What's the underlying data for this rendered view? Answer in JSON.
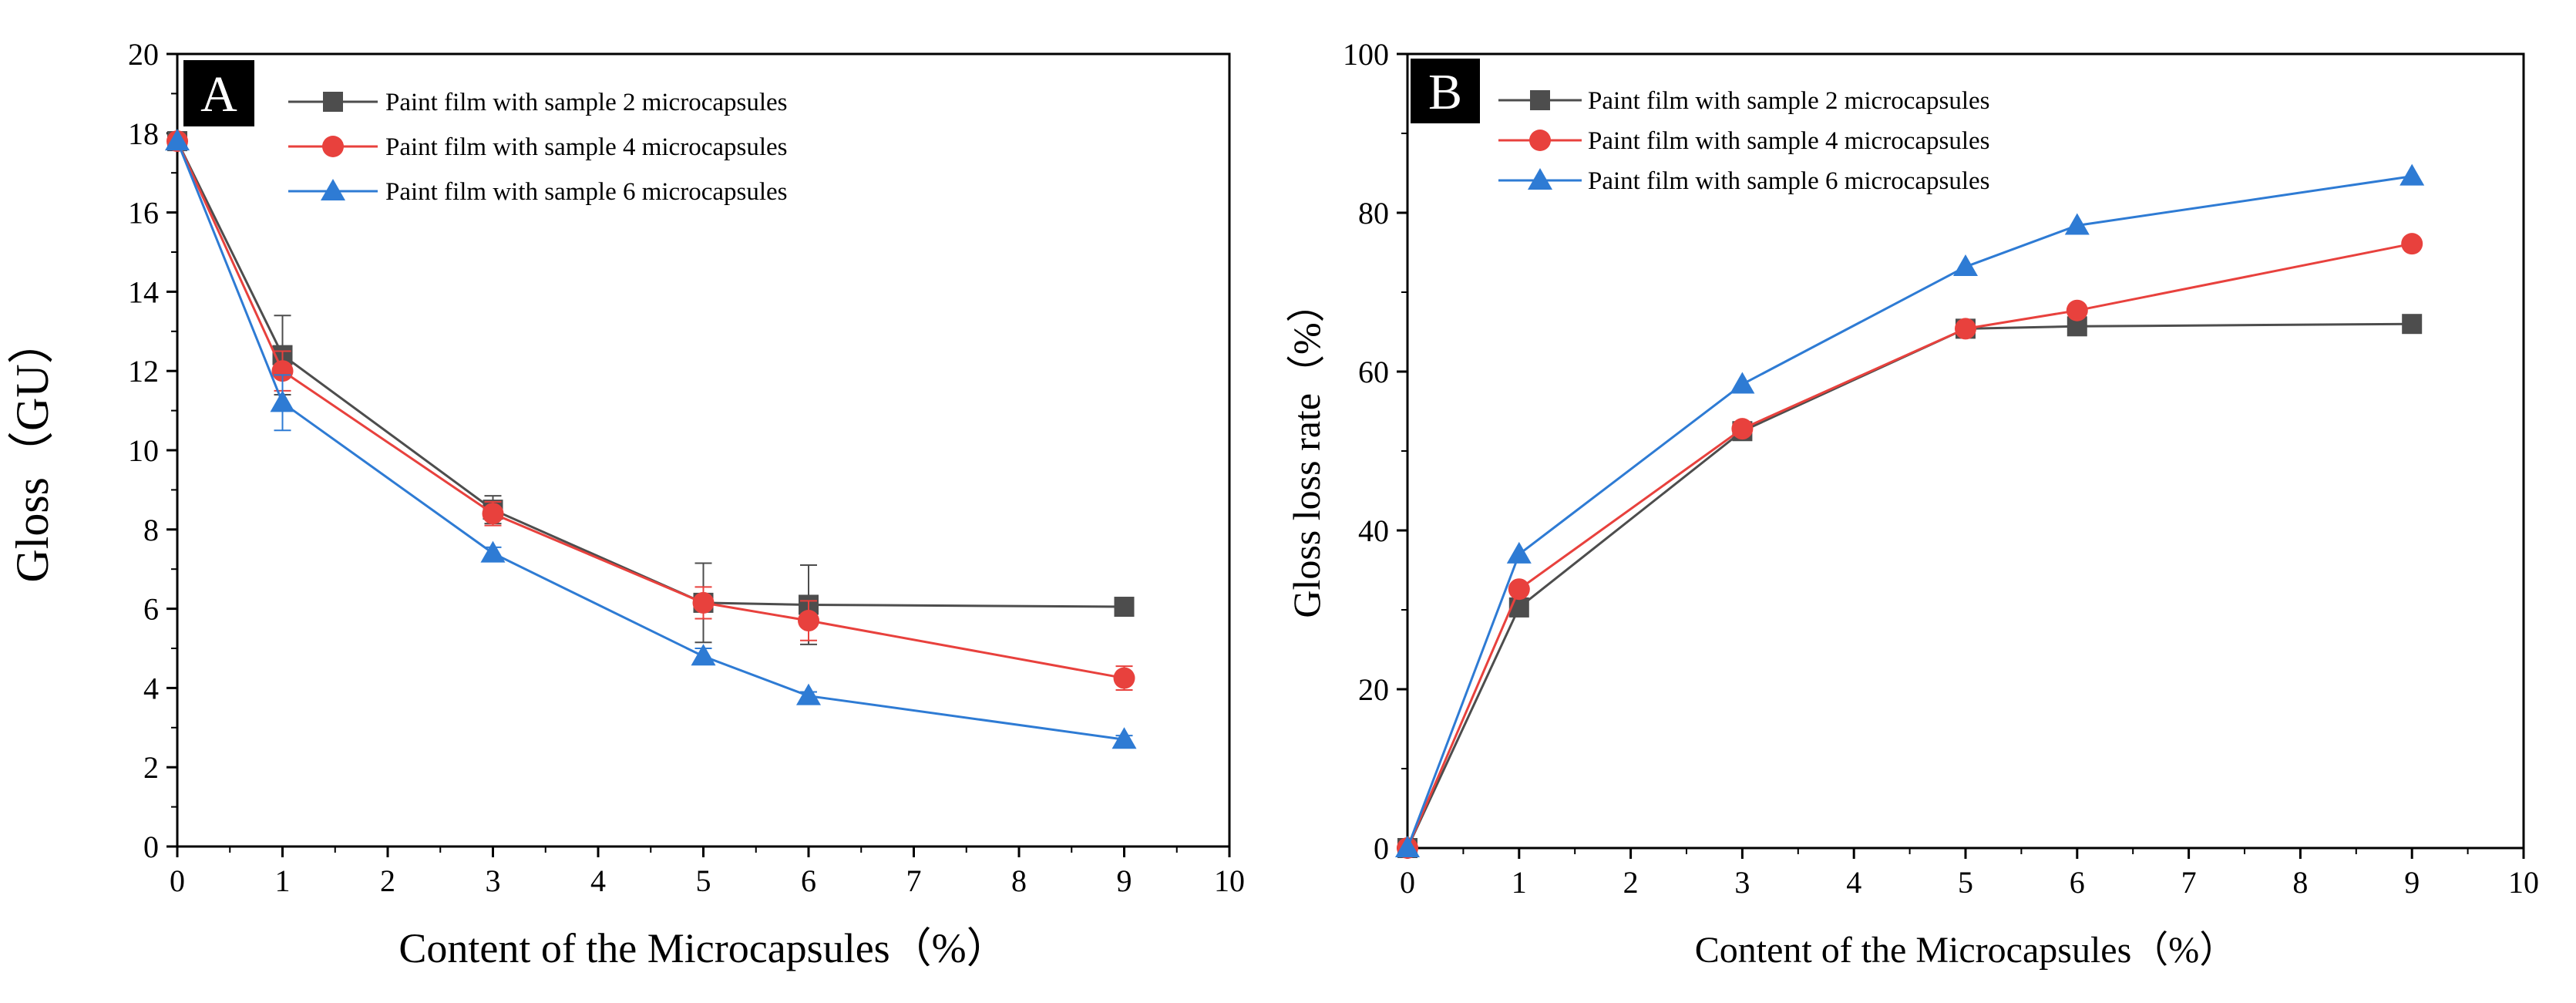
{
  "chart_data": [
    {
      "type": "line",
      "panel_label": "A",
      "title": "",
      "xlabel": "Content of the Microcapsules（%）",
      "ylabel": "Gloss（GU）",
      "xlim": [
        0,
        10
      ],
      "ylim": [
        0,
        20
      ],
      "xticks": [
        "0",
        "1",
        "2",
        "3",
        "4",
        "5",
        "6",
        "7",
        "8",
        "9",
        "10"
      ],
      "yticks": [
        "0",
        "2",
        "4",
        "6",
        "8",
        "10",
        "12",
        "14",
        "16",
        "18",
        "20"
      ],
      "legend_position": "top-left",
      "series": [
        {
          "name": "Paint film with sample 2 microcapsules",
          "color": "#4d4d4d",
          "marker": "square",
          "x": [
            0,
            1,
            3,
            5,
            6,
            9
          ],
          "y": [
            17.8,
            12.4,
            8.5,
            6.15,
            6.1,
            6.05
          ],
          "err": [
            0,
            1.0,
            0.35,
            1.0,
            1.0,
            0
          ]
        },
        {
          "name": "Paint film with sample 4 microcapsules",
          "color": "#e8413d",
          "marker": "circle",
          "x": [
            0,
            1,
            3,
            5,
            6,
            9
          ],
          "y": [
            17.8,
            12.0,
            8.4,
            6.15,
            5.7,
            4.25
          ],
          "err": [
            0,
            0.5,
            0.3,
            0.4,
            0.5,
            0.3
          ]
        },
        {
          "name": "Paint film with sample 6 microcapsules",
          "color": "#2e7bd4",
          "marker": "triangle",
          "x": [
            0,
            1,
            3,
            5,
            6,
            9
          ],
          "y": [
            17.8,
            11.2,
            7.4,
            4.8,
            3.8,
            2.7
          ],
          "err": [
            0,
            0.7,
            0.15,
            0.2,
            0.1,
            0.1
          ]
        }
      ]
    },
    {
      "type": "line",
      "panel_label": "B",
      "title": "",
      "xlabel": "Content of the Microcapsules（%）",
      "ylabel": "Gloss loss rate（%）",
      "xlim": [
        0,
        10
      ],
      "ylim": [
        0,
        100
      ],
      "xticks": [
        "0",
        "1",
        "2",
        "3",
        "4",
        "5",
        "6",
        "7",
        "8",
        "9",
        "10"
      ],
      "yticks": [
        "0",
        "20",
        "40",
        "60",
        "80",
        "100"
      ],
      "legend_position": "top-left",
      "series": [
        {
          "name": "Paint film with sample 2 microcapsules",
          "color": "#4d4d4d",
          "marker": "square",
          "x": [
            0,
            1,
            3,
            5,
            6,
            9
          ],
          "y": [
            0,
            30.3,
            52.5,
            65.4,
            65.7,
            66.0
          ]
        },
        {
          "name": "Paint film with sample 4 microcapsules",
          "color": "#e8413d",
          "marker": "circle",
          "x": [
            0,
            1,
            3,
            5,
            6,
            9
          ],
          "y": [
            0,
            32.6,
            52.8,
            65.4,
            67.7,
            76.1
          ]
        },
        {
          "name": "Paint film with sample 6 microcapsules",
          "color": "#2e7bd4",
          "marker": "triangle",
          "x": [
            0,
            1,
            3,
            5,
            6,
            9
          ],
          "y": [
            0,
            37.0,
            58.4,
            73.2,
            78.4,
            84.6
          ]
        }
      ]
    }
  ]
}
